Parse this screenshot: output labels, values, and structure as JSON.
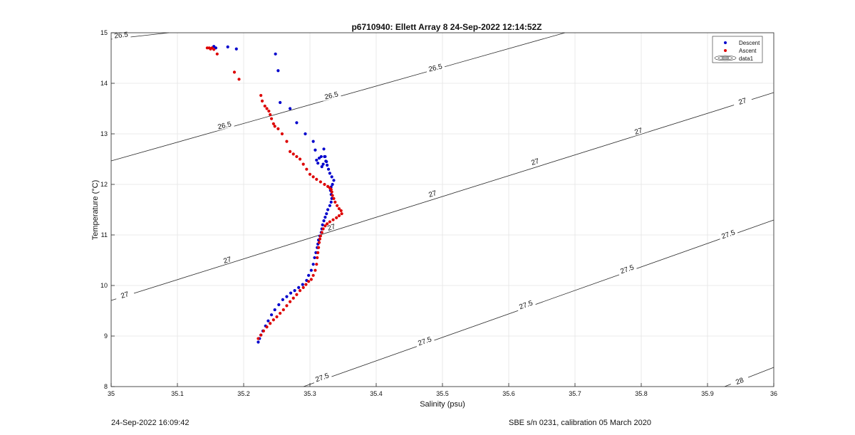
{
  "chart_data": {
    "type": "scatter",
    "title": "p6710940: Ellett Array 8 24-Sep-2022 12:14:52Z",
    "xlabel": "Salinity (psu)",
    "ylabel": "Temperature (°C)",
    "xlim": [
      35,
      36
    ],
    "ylim": [
      8,
      15
    ],
    "xticks": [
      35,
      35.1,
      35.2,
      35.3,
      35.4,
      35.5,
      35.6,
      35.7,
      35.8,
      35.9,
      36
    ],
    "xtick_labels": [
      "35",
      "35.1",
      "35.2",
      "35.3",
      "35.4",
      "35.5",
      "35.6",
      "35.7",
      "35.8",
      "35.9",
      "36"
    ],
    "yticks": [
      8,
      9,
      10,
      11,
      12,
      13,
      14,
      15
    ],
    "ytick_labels": [
      "8",
      "9",
      "10",
      "11",
      "12",
      "13",
      "14",
      "15"
    ],
    "grid": true,
    "legend": {
      "placement": "top-right",
      "entries": [
        "Descent",
        "Ascent",
        "data1"
      ]
    },
    "series": [
      {
        "name": "Descent",
        "color": "#0000cc",
        "x": [
          35.222,
          35.224,
          35.226,
          35.229,
          35.233,
          35.237,
          35.242,
          35.247,
          35.253,
          35.259,
          35.265,
          35.271,
          35.277,
          35.283,
          35.289,
          35.295,
          35.298,
          35.302,
          35.305,
          35.307,
          35.309,
          35.311,
          35.312,
          35.313,
          35.315,
          35.317,
          35.318,
          35.319,
          35.321,
          35.323,
          35.325,
          35.327,
          35.33,
          35.332,
          35.333,
          35.332,
          35.331,
          35.332,
          35.334,
          35.336,
          35.333,
          35.33,
          35.328,
          35.326,
          35.324,
          35.322,
          35.321,
          35.323,
          35.325,
          35.32,
          35.318,
          35.312,
          35.31,
          35.314,
          35.308,
          35.317,
          35.305,
          35.293,
          35.28,
          35.27,
          35.255,
          35.252,
          35.248,
          35.189,
          35.176,
          35.158,
          35.155
        ],
        "y": [
          8.88,
          8.95,
          9.02,
          9.1,
          9.2,
          9.3,
          9.42,
          9.52,
          9.62,
          9.72,
          9.78,
          9.85,
          9.9,
          9.96,
          10.02,
          10.1,
          10.2,
          10.3,
          10.42,
          10.55,
          10.65,
          10.75,
          10.82,
          10.9,
          10.98,
          11.05,
          11.12,
          11.2,
          11.28,
          11.35,
          11.42,
          11.5,
          11.58,
          11.65,
          11.72,
          11.8,
          11.88,
          11.95,
          12.0,
          12.08,
          12.15,
          12.22,
          12.3,
          12.38,
          12.46,
          12.55,
          12.7,
          12.55,
          12.45,
          12.4,
          12.35,
          12.42,
          12.48,
          12.52,
          12.68,
          12.55,
          12.85,
          13.0,
          13.22,
          13.5,
          13.62,
          14.25,
          14.58,
          14.68,
          14.72,
          14.7,
          14.73
        ]
      },
      {
        "name": "Ascent",
        "color": "#dd0000",
        "x": [
          35.222,
          35.226,
          35.23,
          35.235,
          35.24,
          35.245,
          35.25,
          35.255,
          35.26,
          35.265,
          35.27,
          35.275,
          35.28,
          35.285,
          35.29,
          35.294,
          35.298,
          35.302,
          35.305,
          35.308,
          35.31,
          35.311,
          35.312,
          35.313,
          35.314,
          35.315,
          35.316,
          35.318,
          35.32,
          35.323,
          35.326,
          35.33,
          35.335,
          35.34,
          35.344,
          35.348,
          35.347,
          35.344,
          35.341,
          35.338,
          35.336,
          35.334,
          35.333,
          35.332,
          35.33,
          35.327,
          35.322,
          35.316,
          35.31,
          35.305,
          35.3,
          35.295,
          35.29,
          35.285,
          35.28,
          35.275,
          35.27,
          35.265,
          35.258,
          35.252,
          35.247,
          35.245,
          35.242,
          35.24,
          35.238,
          35.235,
          35.232,
          35.228,
          35.226,
          35.193,
          35.186,
          35.16,
          35.155,
          35.15,
          35.145,
          35.148,
          35.152
        ],
        "y": [
          8.95,
          9.02,
          9.1,
          9.18,
          9.25,
          9.32,
          9.38,
          9.45,
          9.52,
          9.6,
          9.68,
          9.75,
          9.82,
          9.9,
          9.96,
          10.02,
          10.08,
          10.12,
          10.2,
          10.3,
          10.42,
          10.55,
          10.65,
          10.75,
          10.85,
          10.92,
          10.98,
          11.05,
          11.12,
          11.18,
          11.22,
          11.26,
          11.3,
          11.34,
          11.38,
          11.42,
          11.48,
          11.52,
          11.58,
          11.65,
          11.72,
          11.78,
          11.85,
          11.9,
          11.93,
          11.96,
          12.0,
          12.05,
          12.1,
          12.15,
          12.2,
          12.3,
          12.4,
          12.5,
          12.55,
          12.6,
          12.65,
          12.85,
          13.0,
          13.1,
          13.15,
          13.2,
          13.3,
          13.38,
          13.45,
          13.5,
          13.55,
          13.65,
          13.76,
          14.08,
          14.22,
          14.58,
          14.67,
          14.68,
          14.7,
          14.7,
          14.7
        ]
      }
    ],
    "contours": [
      {
        "level": "26.5",
        "labels": [
          "26.5",
          "26.5",
          "26.5",
          "26.5"
        ]
      },
      {
        "level": "27",
        "labels": [
          "27",
          "27",
          "27",
          "27",
          "27",
          "27",
          "27",
          "27"
        ]
      },
      {
        "level": "27.5",
        "labels": [
          "27.5",
          "27.5",
          "27.5",
          "27.5",
          "27.5"
        ]
      },
      {
        "level": "28",
        "labels": [
          "28"
        ]
      }
    ]
  },
  "footer": {
    "timestamp": "24-Sep-2022 16:09:42",
    "calibration": "SBE s/n 0231, calibration 05 March 2020"
  }
}
